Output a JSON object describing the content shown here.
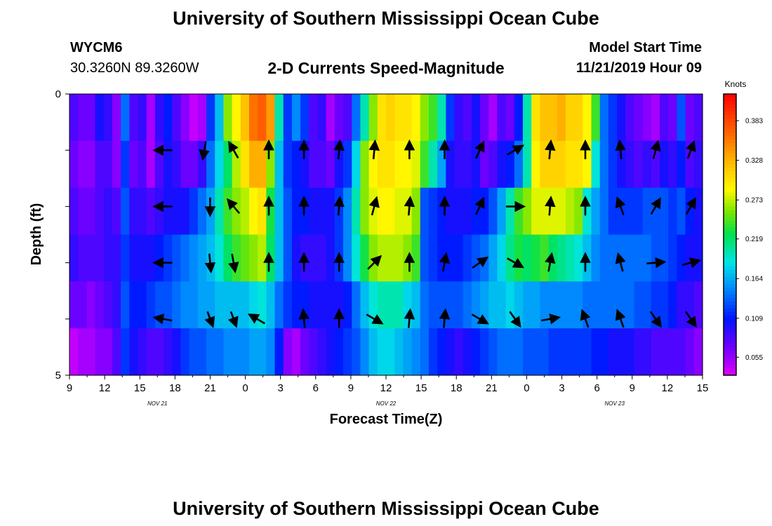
{
  "header": {
    "title_top": "University of Southern Mississippi Ocean Cube",
    "station_id": "WYCM6",
    "coords": "30.3260N 89.3260W",
    "subtitle": "2-D Currents Speed-Magnitude",
    "model_label": "Model Start Time",
    "model_time": "11/21/2019 Hour 09",
    "title_bottom": "University of Southern Mississippi Ocean Cube"
  },
  "chart_data": {
    "type": "heatmap",
    "title": "2-D Currents Speed-Magnitude",
    "xlabel": "Forecast Time(Z)",
    "ylabel": "Depth (ft)",
    "ylim": [
      0,
      5
    ],
    "x_hours_range": [
      0,
      54
    ],
    "x_ticks": [
      "9",
      "12",
      "15",
      "18",
      "21",
      "0",
      "3",
      "6",
      "9",
      "12",
      "15",
      "18",
      "21",
      "0",
      "3",
      "6",
      "9",
      "12",
      "15"
    ],
    "date_labels": [
      {
        "label": "NOV 21",
        "at_hour": 7.5
      },
      {
        "label": "NOV 22",
        "at_hour": 27
      },
      {
        "label": "NOV 23",
        "at_hour": 46.5
      }
    ],
    "y_ticks": [
      "0",
      "5"
    ],
    "colorbar": {
      "unit": "Knots",
      "labels": [
        "0.383",
        "0.328",
        "0.273",
        "0.219",
        "0.164",
        "0.109",
        "0.055"
      ],
      "label_values": [
        0.383,
        0.328,
        0.273,
        0.219,
        0.164,
        0.109,
        0.055
      ],
      "range": [
        0.03,
        0.42
      ]
    },
    "speed_rows": [
      [
        0.08,
        0.07,
        0.07,
        0.1,
        0.09,
        0.06,
        0.14,
        0.08,
        0.09,
        0.05,
        0.09,
        0.11,
        0.08,
        0.06,
        0.04,
        0.05,
        0.12,
        0.17,
        0.26,
        0.29,
        0.32,
        0.36,
        0.37,
        0.34,
        0.2,
        0.12,
        0.15,
        0.12,
        0.08,
        0.09,
        0.05,
        0.07,
        0.08,
        0.14,
        0.2,
        0.26,
        0.3,
        0.31,
        0.3,
        0.3,
        0.29,
        0.26,
        0.24,
        0.2,
        0.12,
        0.09,
        0.08,
        0.1,
        0.07,
        0.05,
        0.08,
        0.07,
        0.11,
        0.2,
        0.3,
        0.32,
        0.32,
        0.33,
        0.31,
        0.31,
        0.29,
        0.24,
        0.14,
        0.12,
        0.1,
        0.08,
        0.07,
        0.06,
        0.05,
        0.08,
        0.07,
        0.13,
        0.07,
        0.08
      ],
      [
        0.07,
        0.06,
        0.06,
        0.08,
        0.08,
        0.06,
        0.12,
        0.07,
        0.08,
        0.05,
        0.08,
        0.1,
        0.09,
        0.07,
        0.07,
        0.09,
        0.14,
        0.18,
        0.22,
        0.27,
        0.3,
        0.33,
        0.33,
        0.26,
        0.17,
        0.12,
        0.11,
        0.1,
        0.08,
        0.08,
        0.07,
        0.1,
        0.12,
        0.18,
        0.26,
        0.29,
        0.3,
        0.3,
        0.29,
        0.29,
        0.28,
        0.24,
        0.2,
        0.16,
        0.1,
        0.09,
        0.09,
        0.1,
        0.07,
        0.08,
        0.1,
        0.11,
        0.14,
        0.2,
        0.29,
        0.31,
        0.31,
        0.31,
        0.3,
        0.3,
        0.29,
        0.19,
        0.14,
        0.12,
        0.1,
        0.09,
        0.08,
        0.09,
        0.08,
        0.1,
        0.09,
        0.11,
        0.08,
        0.09
      ],
      [
        0.08,
        0.07,
        0.07,
        0.08,
        0.09,
        0.08,
        0.13,
        0.09,
        0.09,
        0.08,
        0.09,
        0.1,
        0.1,
        0.1,
        0.12,
        0.14,
        0.16,
        0.2,
        0.24,
        0.26,
        0.27,
        0.29,
        0.3,
        0.23,
        0.17,
        0.13,
        0.11,
        0.11,
        0.1,
        0.1,
        0.1,
        0.12,
        0.15,
        0.2,
        0.26,
        0.28,
        0.29,
        0.29,
        0.28,
        0.28,
        0.26,
        0.13,
        0.12,
        0.11,
        0.1,
        0.1,
        0.1,
        0.11,
        0.11,
        0.13,
        0.16,
        0.2,
        0.24,
        0.26,
        0.28,
        0.28,
        0.28,
        0.28,
        0.27,
        0.26,
        0.19,
        0.16,
        0.14,
        0.12,
        0.12,
        0.12,
        0.12,
        0.13,
        0.13,
        0.13,
        0.12,
        0.13,
        0.11,
        0.1
      ],
      [
        0.09,
        0.08,
        0.08,
        0.08,
        0.09,
        0.09,
        0.12,
        0.1,
        0.1,
        0.1,
        0.11,
        0.12,
        0.13,
        0.14,
        0.15,
        0.16,
        0.17,
        0.19,
        0.22,
        0.24,
        0.25,
        0.26,
        0.27,
        0.22,
        0.17,
        0.13,
        0.1,
        0.09,
        0.09,
        0.09,
        0.1,
        0.12,
        0.15,
        0.19,
        0.23,
        0.26,
        0.27,
        0.27,
        0.27,
        0.26,
        0.24,
        0.13,
        0.12,
        0.11,
        0.11,
        0.11,
        0.12,
        0.13,
        0.14,
        0.16,
        0.18,
        0.21,
        0.23,
        0.22,
        0.23,
        0.24,
        0.22,
        0.21,
        0.2,
        0.19,
        0.17,
        0.15,
        0.14,
        0.14,
        0.14,
        0.14,
        0.14,
        0.14,
        0.13,
        0.13,
        0.12,
        0.11,
        0.1,
        0.1
      ],
      [
        0.07,
        0.07,
        0.06,
        0.07,
        0.08,
        0.09,
        0.13,
        0.11,
        0.11,
        0.12,
        0.13,
        0.13,
        0.14,
        0.15,
        0.15,
        0.16,
        0.16,
        0.17,
        0.17,
        0.17,
        0.17,
        0.18,
        0.19,
        0.17,
        0.14,
        0.12,
        0.11,
        0.11,
        0.1,
        0.1,
        0.1,
        0.1,
        0.11,
        0.14,
        0.17,
        0.19,
        0.2,
        0.2,
        0.2,
        0.18,
        0.17,
        0.14,
        0.13,
        0.13,
        0.13,
        0.13,
        0.14,
        0.15,
        0.16,
        0.17,
        0.17,
        0.18,
        0.17,
        0.16,
        0.16,
        0.15,
        0.15,
        0.15,
        0.15,
        0.15,
        0.14,
        0.14,
        0.14,
        0.14,
        0.14,
        0.14,
        0.13,
        0.13,
        0.12,
        0.12,
        0.11,
        0.09,
        0.09,
        0.08
      ],
      [
        0.04,
        0.05,
        0.05,
        0.06,
        0.06,
        0.08,
        0.12,
        0.1,
        0.09,
        0.08,
        0.08,
        0.09,
        0.1,
        0.12,
        0.13,
        0.13,
        0.14,
        0.14,
        0.15,
        0.15,
        0.15,
        0.16,
        0.16,
        0.15,
        0.11,
        0.06,
        0.05,
        0.07,
        0.08,
        0.09,
        0.1,
        0.11,
        0.12,
        0.13,
        0.15,
        0.17,
        0.18,
        0.18,
        0.17,
        0.16,
        0.15,
        0.14,
        0.12,
        0.11,
        0.1,
        0.09,
        0.1,
        0.11,
        0.12,
        0.13,
        0.14,
        0.14,
        0.14,
        0.13,
        0.13,
        0.13,
        0.12,
        0.12,
        0.12,
        0.12,
        0.12,
        0.11,
        0.11,
        0.1,
        0.1,
        0.1,
        0.09,
        0.09,
        0.08,
        0.08,
        0.08,
        0.08,
        0.07,
        0.06
      ]
    ],
    "vectors": [
      {
        "hour": 8,
        "depth": 1,
        "dir": 270,
        "mag": 0.8
      },
      {
        "hour": 8,
        "depth": 2,
        "dir": 270,
        "mag": 0.8
      },
      {
        "hour": 8,
        "depth": 3,
        "dir": 270,
        "mag": 0.8
      },
      {
        "hour": 8,
        "depth": 4,
        "dir": 280,
        "mag": 0.8
      },
      {
        "hour": 11.5,
        "depth": 1,
        "dir": 190,
        "mag": 0.8
      },
      {
        "hour": 12,
        "depth": 2,
        "dir": 180,
        "mag": 0.8
      },
      {
        "hour": 12,
        "depth": 3,
        "dir": 175,
        "mag": 0.8
      },
      {
        "hour": 12,
        "depth": 4,
        "dir": 160,
        "mag": 0.7
      },
      {
        "hour": 14,
        "depth": 1,
        "dir": 330,
        "mag": 0.8
      },
      {
        "hour": 14,
        "depth": 2,
        "dir": 320,
        "mag": 0.8
      },
      {
        "hour": 14,
        "depth": 3,
        "dir": 170,
        "mag": 0.8
      },
      {
        "hour": 14,
        "depth": 4,
        "dir": 160,
        "mag": 0.7
      },
      {
        "hour": 17,
        "depth": 1,
        "dir": 0,
        "mag": 0.8
      },
      {
        "hour": 17,
        "depth": 2,
        "dir": 0,
        "mag": 0.8
      },
      {
        "hour": 17,
        "depth": 3,
        "dir": 0,
        "mag": 0.8
      },
      {
        "hour": 16,
        "depth": 4,
        "dir": 300,
        "mag": 0.8
      },
      {
        "hour": 20,
        "depth": 1,
        "dir": 0,
        "mag": 0.8
      },
      {
        "hour": 20,
        "depth": 2,
        "dir": 0,
        "mag": 0.8
      },
      {
        "hour": 20,
        "depth": 3,
        "dir": 0,
        "mag": 0.8
      },
      {
        "hour": 20,
        "depth": 4,
        "dir": 355,
        "mag": 0.8
      },
      {
        "hour": 23,
        "depth": 1,
        "dir": 5,
        "mag": 0.8
      },
      {
        "hour": 23,
        "depth": 2,
        "dir": 5,
        "mag": 0.8
      },
      {
        "hour": 23,
        "depth": 3,
        "dir": 0,
        "mag": 0.8
      },
      {
        "hour": 23,
        "depth": 4,
        "dir": 0,
        "mag": 0.8
      },
      {
        "hour": 26,
        "depth": 1,
        "dir": 5,
        "mag": 0.8
      },
      {
        "hour": 26,
        "depth": 2,
        "dir": 15,
        "mag": 0.8
      },
      {
        "hour": 26,
        "depth": 3,
        "dir": 45,
        "mag": 0.8
      },
      {
        "hour": 26,
        "depth": 4,
        "dir": 120,
        "mag": 0.8
      },
      {
        "hour": 29,
        "depth": 1,
        "dir": 0,
        "mag": 0.8
      },
      {
        "hour": 29,
        "depth": 2,
        "dir": 5,
        "mag": 0.8
      },
      {
        "hour": 29,
        "depth": 3,
        "dir": 0,
        "mag": 0.8
      },
      {
        "hour": 29,
        "depth": 4,
        "dir": 5,
        "mag": 0.8
      },
      {
        "hour": 32,
        "depth": 1,
        "dir": 0,
        "mag": 0.8
      },
      {
        "hour": 32,
        "depth": 2,
        "dir": 0,
        "mag": 0.8
      },
      {
        "hour": 32,
        "depth": 3,
        "dir": 10,
        "mag": 0.8
      },
      {
        "hour": 32,
        "depth": 4,
        "dir": 5,
        "mag": 0.8
      },
      {
        "hour": 35,
        "depth": 1,
        "dir": 25,
        "mag": 0.8
      },
      {
        "hour": 35,
        "depth": 2,
        "dir": 25,
        "mag": 0.8
      },
      {
        "hour": 35,
        "depth": 3,
        "dir": 55,
        "mag": 0.8
      },
      {
        "hour": 35,
        "depth": 4,
        "dir": 120,
        "mag": 0.8
      },
      {
        "hour": 38,
        "depth": 1,
        "dir": 60,
        "mag": 0.8
      },
      {
        "hour": 38,
        "depth": 2,
        "dir": 90,
        "mag": 0.8
      },
      {
        "hour": 38,
        "depth": 3,
        "dir": 120,
        "mag": 0.8
      },
      {
        "hour": 38,
        "depth": 4,
        "dir": 145,
        "mag": 0.8
      },
      {
        "hour": 41,
        "depth": 1,
        "dir": 5,
        "mag": 0.8
      },
      {
        "hour": 41,
        "depth": 2,
        "dir": 5,
        "mag": 0.8
      },
      {
        "hour": 41,
        "depth": 3,
        "dir": 10,
        "mag": 0.8
      },
      {
        "hour": 41,
        "depth": 4,
        "dir": 80,
        "mag": 0.8
      },
      {
        "hour": 44,
        "depth": 1,
        "dir": 0,
        "mag": 0.8
      },
      {
        "hour": 44,
        "depth": 2,
        "dir": 0,
        "mag": 0.8
      },
      {
        "hour": 44,
        "depth": 3,
        "dir": 0,
        "mag": 0.8
      },
      {
        "hour": 44,
        "depth": 4,
        "dir": 340,
        "mag": 0.8
      },
      {
        "hour": 47,
        "depth": 1,
        "dir": 355,
        "mag": 0.8
      },
      {
        "hour": 47,
        "depth": 2,
        "dir": 340,
        "mag": 0.8
      },
      {
        "hour": 47,
        "depth": 3,
        "dir": 345,
        "mag": 0.8
      },
      {
        "hour": 47,
        "depth": 4,
        "dir": 340,
        "mag": 0.8
      },
      {
        "hour": 50,
        "depth": 1,
        "dir": 15,
        "mag": 0.8
      },
      {
        "hour": 50,
        "depth": 2,
        "dir": 30,
        "mag": 0.8
      },
      {
        "hour": 50,
        "depth": 3,
        "dir": 85,
        "mag": 0.8
      },
      {
        "hour": 50,
        "depth": 4,
        "dir": 145,
        "mag": 0.8
      },
      {
        "hour": 53,
        "depth": 1,
        "dir": 20,
        "mag": 0.8
      },
      {
        "hour": 53,
        "depth": 2,
        "dir": 30,
        "mag": 0.8
      },
      {
        "hour": 53,
        "depth": 3,
        "dir": 75,
        "mag": 0.8
      },
      {
        "hour": 53,
        "depth": 4,
        "dir": 145,
        "mag": 0.8
      }
    ]
  }
}
